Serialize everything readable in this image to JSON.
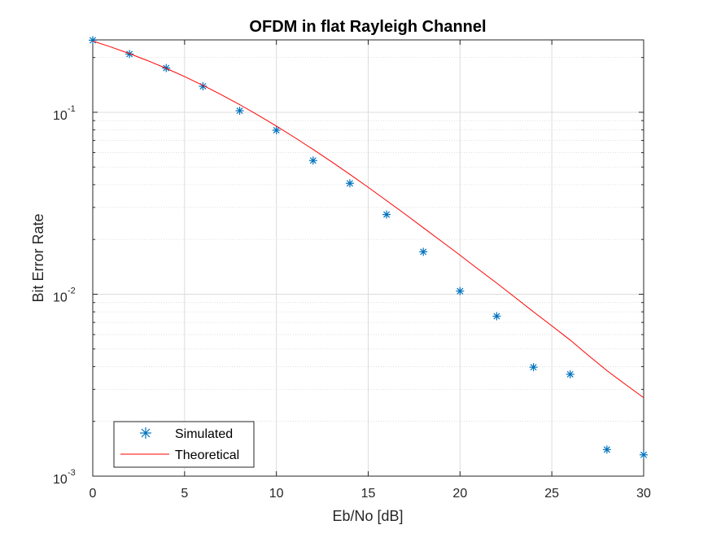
{
  "chart_data": {
    "type": "scatter",
    "title": "OFDM in flat Rayleigh Channel",
    "xlabel": "Eb/No [dB]",
    "ylabel": "Bit Error Rate",
    "xlim": [
      0,
      30
    ],
    "ylim": [
      0.001,
      0.25
    ],
    "yscale": "log",
    "grid": true,
    "minor_grid": true,
    "legend_position": "bottom-left",
    "x_ticks": [
      {
        "value": 0,
        "label": "0"
      },
      {
        "value": 5,
        "label": "5"
      },
      {
        "value": 10,
        "label": "10"
      },
      {
        "value": 15,
        "label": "15"
      },
      {
        "value": 20,
        "label": "20"
      },
      {
        "value": 25,
        "label": "25"
      },
      {
        "value": 30,
        "label": "30"
      }
    ],
    "y_ticks": [
      {
        "value": 0.1,
        "base": "10",
        "exp": "-1"
      },
      {
        "value": 0.01,
        "base": "10",
        "exp": "-2"
      },
      {
        "value": 0.001,
        "base": "10",
        "exp": "-3"
      }
    ],
    "series": [
      {
        "name": "Simulated",
        "style": "markers",
        "marker": "asterisk",
        "color": "#0072BD",
        "x": [
          0,
          2,
          4,
          6,
          8,
          10,
          12,
          14,
          16,
          18,
          20,
          22,
          24,
          26,
          28,
          30
        ],
        "y": [
          0.249,
          0.209,
          0.175,
          0.139,
          0.102,
          0.0797,
          0.0543,
          0.0407,
          0.0274,
          0.0171,
          0.0104,
          0.00757,
          0.00397,
          0.00363,
          0.0014,
          0.00131
        ]
      },
      {
        "name": "Theoretical",
        "style": "line",
        "color": "#FF0000",
        "x": [
          0,
          1,
          2,
          3,
          4,
          5,
          6,
          7,
          8,
          9,
          10,
          11,
          12,
          13,
          14,
          15,
          16,
          17,
          18,
          19,
          20,
          21,
          22,
          23,
          24,
          25,
          26,
          27,
          28,
          29,
          30
        ],
        "y": [
          0.2465,
          0.2284,
          0.2101,
          0.192,
          0.1743,
          0.1571,
          0.1405,
          0.1249,
          0.1102,
          0.0965,
          0.084,
          0.0726,
          0.0625,
          0.0535,
          0.0456,
          0.0387,
          0.0327,
          0.0276,
          0.0232,
          0.0195,
          0.0164,
          0.0137,
          0.0115,
          0.0096,
          0.008,
          0.0067,
          0.0056,
          0.0046,
          0.0038,
          0.0032,
          0.0027
        ]
      }
    ]
  },
  "legend": {
    "items": [
      {
        "label": "Simulated",
        "color": "#0072BD",
        "marker": "asterisk"
      },
      {
        "label": "Theoretical",
        "color": "#FF0000",
        "marker": "line"
      }
    ]
  }
}
